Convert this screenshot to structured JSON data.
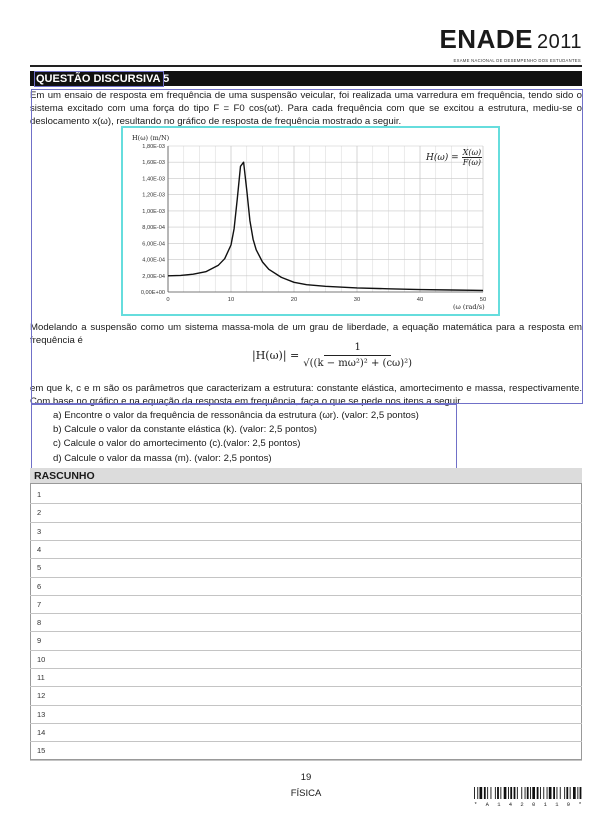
{
  "header": {
    "brand": "ENADE",
    "year": "2011",
    "subtitle": "EXAME NACIONAL DE DESEMPENHO DOS ESTUDANTES"
  },
  "question": {
    "title": "QUESTÃO DISCURSIVA 5",
    "intro": "Em um ensaio de resposta em frequência de uma suspensão veicular, foi realizada uma varredura em frequência, tendo sido o sistema excitado com uma força do tipo F = F0 cos(ωt). Para cada frequência com que se excitou a estrutura, mediu-se o deslocamento x(ω), resultando no gráfico de resposta de frequência mostrado a seguir.",
    "formula_h": {
      "lhs": "H(ω) =",
      "num": "X(ω)",
      "den": "F(ω)"
    },
    "model_text": "Modelando a suspensão como um sistema massa-mola de um grau de liberdade, a equação matemática para a resposta em frequência é",
    "equation": {
      "lhs": "|H(ω)| =",
      "num": "1",
      "den": "√((k − mω²)² + (cω)²)"
    },
    "conclusion": "em que k, c e m são os parâmetros que caracterizam a estrutura: constante elástica, amortecimento e massa, respectivamente. Com base no gráfico e na equação da resposta em frequência, faça o que se pede nos itens a seguir.",
    "items": [
      "a) Encontre o valor da frequência de ressonância da estrutura (ωr). (valor: 2,5 pontos)",
      "b) Calcule o valor da constante elástica (k). (valor: 2,5 pontos)",
      "c) Calcule o valor do amortecimento (c).(valor: 2,5 pontos)",
      "d) Calcule o valor da massa (m). (valor: 2,5 pontos)"
    ]
  },
  "chart_data": {
    "type": "line",
    "ylabel": "H(ω) (m/N)",
    "xlabel": "(ω (rad/s)",
    "xlim": [
      0,
      50
    ],
    "ylim": [
      0,
      0.0018
    ],
    "x_ticks": [
      "0",
      "10",
      "20",
      "30",
      "40",
      "50"
    ],
    "y_ticks": [
      "0,00E+00",
      "2,00E-04",
      "4,00E-04",
      "6,00E-04",
      "8,00E-04",
      "1,00E-03",
      "1,20E-03",
      "1,40E-03",
      "1,60E-03",
      "1,80E-03"
    ],
    "grid": true,
    "series": [
      {
        "x": [
          0,
          2,
          4,
          6,
          8,
          9,
          10,
          10.5,
          11,
          11.5,
          12,
          12.5,
          13,
          13.5,
          14,
          15,
          16,
          18,
          20,
          22,
          25,
          30,
          35,
          40,
          45,
          50
        ],
        "y": [
          0.0002,
          0.000205,
          0.00022,
          0.00025,
          0.00033,
          0.00041,
          0.00058,
          0.00078,
          0.00115,
          0.00155,
          0.0016,
          0.00125,
          0.00088,
          0.00065,
          0.00052,
          0.00037,
          0.00028,
          0.00018,
          0.00012,
          9e-05,
          7e-05,
          5e-05,
          4e-05,
          3e-05,
          2.5e-05,
          2e-05
        ]
      }
    ]
  },
  "rascunho": {
    "title": "RASCUNHO",
    "lines": [
      "1",
      "2",
      "3",
      "4",
      "5",
      "6",
      "7",
      "8",
      "9",
      "10",
      "11",
      "12",
      "13",
      "14",
      "15"
    ]
  },
  "footer": {
    "page": "19",
    "subject": "FÍSICA",
    "barcode_digits": "* A 1 4 2 0 1 1 9 *"
  }
}
